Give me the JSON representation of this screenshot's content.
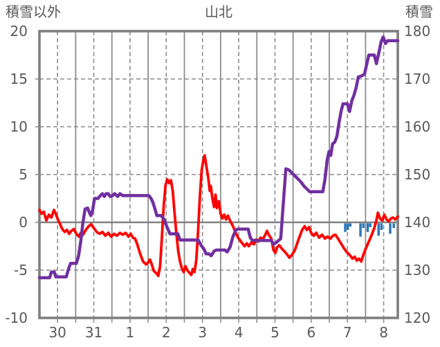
{
  "header": {
    "left_axis_title": "積雪以外",
    "title": "山北",
    "right_axis_title": "積雪"
  },
  "colors": {
    "red_series": "#ff0000",
    "purple_series": "#7030a0",
    "blue_bars": "#2e75b6",
    "grid": "#8c8c8c",
    "frame": "#7f7f7f",
    "zero_line": "#808080",
    "text": "#595959",
    "background": "#ffffff"
  },
  "chart_data": {
    "type": "line",
    "title": "山北",
    "left_axis": {
      "title": "積雪以外",
      "ticks": [
        20,
        15,
        10,
        5,
        0,
        -5,
        -10
      ],
      "range": [
        -10,
        20
      ]
    },
    "right_axis": {
      "title": "積雪",
      "ticks": [
        180,
        170,
        160,
        150,
        140,
        130,
        120
      ],
      "range": [
        120,
        180
      ]
    },
    "x_axis": {
      "categories": [
        "30",
        "31",
        "1",
        "2",
        "3",
        "4",
        "5",
        "6",
        "7",
        "8"
      ],
      "note": "t is in days from start of day 30; category k occupies t=[k,k+1]",
      "t_range": [
        0,
        9.89
      ],
      "solid_gridlines_t": [
        1,
        2,
        3,
        4,
        5,
        6,
        7,
        8,
        9
      ],
      "dashed_gridlines_t": [
        0.5,
        1.5,
        2.5,
        3.5,
        4.5,
        5.5,
        6.5,
        7.5,
        8.5,
        9.5
      ]
    },
    "grid": {
      "horizontal_dashed_at": [
        15,
        10,
        5,
        -5
      ],
      "zero_line_at": 0
    },
    "series": [
      {
        "id": "red-line",
        "type": "line",
        "axis": "left",
        "color": "#ff0000",
        "stroke_width": 3.8,
        "points": [
          [
            0.0,
            1.3
          ],
          [
            0.06,
            0.9
          ],
          [
            0.12,
            1.1
          ],
          [
            0.19,
            0.2
          ],
          [
            0.26,
            0.8
          ],
          [
            0.33,
            0.5
          ],
          [
            0.4,
            1.3
          ],
          [
            0.46,
            0.8
          ],
          [
            0.52,
            0.2
          ],
          [
            0.57,
            -0.2
          ],
          [
            0.63,
            -0.7
          ],
          [
            0.7,
            -1.0
          ],
          [
            0.76,
            -0.8
          ],
          [
            0.82,
            -1.2
          ],
          [
            0.88,
            -0.9
          ],
          [
            0.95,
            -0.7
          ],
          [
            1.02,
            -1.2
          ],
          [
            1.09,
            -1.5
          ],
          [
            1.14,
            -1.1
          ],
          [
            1.2,
            -1.3
          ],
          [
            1.28,
            -0.8
          ],
          [
            1.36,
            -0.4
          ],
          [
            1.43,
            -0.2
          ],
          [
            1.5,
            -0.6
          ],
          [
            1.58,
            -1.0
          ],
          [
            1.66,
            -1.2
          ],
          [
            1.74,
            -1.0
          ],
          [
            1.82,
            -1.4
          ],
          [
            1.9,
            -1.1
          ],
          [
            1.98,
            -1.5
          ],
          [
            2.06,
            -1.2
          ],
          [
            2.14,
            -1.4
          ],
          [
            2.22,
            -1.1
          ],
          [
            2.3,
            -1.3
          ],
          [
            2.38,
            -1.1
          ],
          [
            2.46,
            -1.5
          ],
          [
            2.52,
            -1.2
          ],
          [
            2.58,
            -1.6
          ],
          [
            2.64,
            -1.7
          ],
          [
            2.7,
            -2.3
          ],
          [
            2.78,
            -3.3
          ],
          [
            2.86,
            -4.1
          ],
          [
            2.94,
            -4.4
          ],
          [
            3.0,
            -4.2
          ],
          [
            3.05,
            -3.9
          ],
          [
            3.1,
            -4.4
          ],
          [
            3.16,
            -5.1
          ],
          [
            3.22,
            -5.3
          ],
          [
            3.28,
            -5.6
          ],
          [
            3.33,
            -4.6
          ],
          [
            3.38,
            -1.6
          ],
          [
            3.43,
            1.8
          ],
          [
            3.48,
            3.9
          ],
          [
            3.53,
            4.5
          ],
          [
            3.58,
            4.1
          ],
          [
            3.63,
            4.4
          ],
          [
            3.68,
            3.3
          ],
          [
            3.73,
            0.9
          ],
          [
            3.78,
            -1.2
          ],
          [
            3.83,
            -3.0
          ],
          [
            3.88,
            -4.1
          ],
          [
            3.93,
            -4.8
          ],
          [
            3.98,
            -5.2
          ],
          [
            4.03,
            -4.6
          ],
          [
            4.08,
            -5.0
          ],
          [
            4.14,
            -5.3
          ],
          [
            4.19,
            -5.5
          ],
          [
            4.23,
            -4.9
          ],
          [
            4.28,
            -5.2
          ],
          [
            4.33,
            -3.9
          ],
          [
            4.38,
            -0.8
          ],
          [
            4.43,
            2.8
          ],
          [
            4.48,
            5.5
          ],
          [
            4.52,
            6.4
          ],
          [
            4.56,
            7.0
          ],
          [
            4.61,
            5.8
          ],
          [
            4.66,
            4.6
          ],
          [
            4.7,
            3.3
          ],
          [
            4.73,
            3.8
          ],
          [
            4.77,
            2.6
          ],
          [
            4.82,
            1.6
          ],
          [
            4.86,
            2.9
          ],
          [
            4.9,
            1.5
          ],
          [
            4.95,
            2.2
          ],
          [
            5.0,
            0.9
          ],
          [
            5.05,
            0.4
          ],
          [
            5.1,
            0.8
          ],
          [
            5.15,
            0.3
          ],
          [
            5.2,
            0.7
          ],
          [
            5.27,
            0.1
          ],
          [
            5.34,
            -0.4
          ],
          [
            5.42,
            -1.1
          ],
          [
            5.48,
            -1.6
          ],
          [
            5.54,
            -1.9
          ],
          [
            5.6,
            -2.2
          ],
          [
            5.66,
            -2.5
          ],
          [
            5.72,
            -2.2
          ],
          [
            5.78,
            -2.5
          ],
          [
            5.85,
            -2.1
          ],
          [
            5.92,
            -2.3
          ],
          [
            5.98,
            -1.8
          ],
          [
            6.04,
            -2.0
          ],
          [
            6.1,
            -1.6
          ],
          [
            6.16,
            -1.8
          ],
          [
            6.22,
            -1.4
          ],
          [
            6.28,
            -0.9
          ],
          [
            6.33,
            -1.3
          ],
          [
            6.4,
            -1.7
          ],
          [
            6.46,
            -2.9
          ],
          [
            6.51,
            -3.2
          ],
          [
            6.56,
            -2.6
          ],
          [
            6.62,
            -2.4
          ],
          [
            6.7,
            -2.8
          ],
          [
            6.8,
            -3.2
          ],
          [
            6.9,
            -3.7
          ],
          [
            6.97,
            -3.4
          ],
          [
            7.05,
            -2.9
          ],
          [
            7.15,
            -1.8
          ],
          [
            7.25,
            -0.8
          ],
          [
            7.32,
            -0.4
          ],
          [
            7.38,
            -0.8
          ],
          [
            7.44,
            -0.5
          ],
          [
            7.5,
            -1.1
          ],
          [
            7.57,
            -1.4
          ],
          [
            7.64,
            -1.1
          ],
          [
            7.72,
            -1.6
          ],
          [
            7.8,
            -1.3
          ],
          [
            7.88,
            -1.7
          ],
          [
            7.95,
            -1.5
          ],
          [
            8.03,
            -1.7
          ],
          [
            8.1,
            -1.4
          ],
          [
            8.17,
            -1.3
          ],
          [
            8.24,
            -1.7
          ],
          [
            8.32,
            -2.2
          ],
          [
            8.4,
            -2.7
          ],
          [
            8.48,
            -3.1
          ],
          [
            8.56,
            -3.4
          ],
          [
            8.64,
            -3.8
          ],
          [
            8.7,
            -3.6
          ],
          [
            8.76,
            -4.0
          ],
          [
            8.82,
            -3.8
          ],
          [
            8.88,
            -4.1
          ],
          [
            8.94,
            -3.4
          ],
          [
            9.0,
            -2.8
          ],
          [
            9.08,
            -2.1
          ],
          [
            9.16,
            -1.4
          ],
          [
            9.24,
            -0.6
          ],
          [
            9.3,
            0.2
          ],
          [
            9.34,
            1.0
          ],
          [
            9.4,
            0.4
          ],
          [
            9.46,
            0.2
          ],
          [
            9.52,
            0.8
          ],
          [
            9.58,
            0.3
          ],
          [
            9.64,
            0.1
          ],
          [
            9.7,
            0.4
          ],
          [
            9.76,
            0.5
          ],
          [
            9.82,
            0.3
          ],
          [
            9.89,
            0.6
          ]
        ]
      },
      {
        "id": "purple-line",
        "type": "line",
        "axis": "right",
        "color": "#7030a0",
        "stroke_width": 4.5,
        "points": [
          [
            0.0,
            128.4
          ],
          [
            0.28,
            128.4
          ],
          [
            0.33,
            129.6
          ],
          [
            0.41,
            129.6
          ],
          [
            0.45,
            128.6
          ],
          [
            0.74,
            128.6
          ],
          [
            0.8,
            130.2
          ],
          [
            0.86,
            131.4
          ],
          [
            1.02,
            131.4
          ],
          [
            1.08,
            133
          ],
          [
            1.14,
            136
          ],
          [
            1.2,
            140
          ],
          [
            1.26,
            142.8
          ],
          [
            1.33,
            143
          ],
          [
            1.38,
            142
          ],
          [
            1.42,
            141.4
          ],
          [
            1.47,
            142.6
          ],
          [
            1.52,
            145
          ],
          [
            1.62,
            145
          ],
          [
            1.68,
            145.6
          ],
          [
            1.74,
            146
          ],
          [
            1.79,
            145.4
          ],
          [
            1.84,
            146
          ],
          [
            1.9,
            146
          ],
          [
            1.95,
            145.4
          ],
          [
            2.02,
            145.6
          ],
          [
            2.08,
            146
          ],
          [
            2.16,
            145.4
          ],
          [
            2.22,
            146
          ],
          [
            2.3,
            145.6
          ],
          [
            2.7,
            145.6
          ],
          [
            3.02,
            145.6
          ],
          [
            3.08,
            145
          ],
          [
            3.13,
            144.2
          ],
          [
            3.18,
            143
          ],
          [
            3.24,
            141.4
          ],
          [
            3.36,
            141.4
          ],
          [
            3.44,
            140.6
          ],
          [
            3.52,
            139
          ],
          [
            3.6,
            137.6
          ],
          [
            3.82,
            137.6
          ],
          [
            3.88,
            136.3
          ],
          [
            4.38,
            136.3
          ],
          [
            4.46,
            135.2
          ],
          [
            4.54,
            134.4
          ],
          [
            4.6,
            133.4
          ],
          [
            4.68,
            133.4
          ],
          [
            4.74,
            133
          ],
          [
            4.82,
            134
          ],
          [
            4.88,
            134.2
          ],
          [
            5.12,
            134.2
          ],
          [
            5.18,
            133.8
          ],
          [
            5.26,
            134.8
          ],
          [
            5.34,
            137
          ],
          [
            5.42,
            138.4
          ],
          [
            5.48,
            138.6
          ],
          [
            5.76,
            138.6
          ],
          [
            5.82,
            136.8
          ],
          [
            5.88,
            136.2
          ],
          [
            6.4,
            136.2
          ],
          [
            6.46,
            135.4
          ],
          [
            6.54,
            135.8
          ],
          [
            6.6,
            136.2
          ],
          [
            6.66,
            136.6
          ],
          [
            6.72,
            143
          ],
          [
            6.8,
            151.2
          ],
          [
            6.88,
            151
          ],
          [
            6.96,
            150.4
          ],
          [
            7.04,
            149.8
          ],
          [
            7.12,
            149.2
          ],
          [
            7.22,
            148.4
          ],
          [
            7.3,
            147.6
          ],
          [
            7.38,
            147
          ],
          [
            7.46,
            146.4
          ],
          [
            7.82,
            146.4
          ],
          [
            7.88,
            149
          ],
          [
            7.94,
            153
          ],
          [
            7.99,
            154.8
          ],
          [
            8.04,
            154
          ],
          [
            8.09,
            156.4
          ],
          [
            8.15,
            156.8
          ],
          [
            8.21,
            158
          ],
          [
            8.27,
            161
          ],
          [
            8.33,
            163.4
          ],
          [
            8.38,
            164.8
          ],
          [
            8.5,
            164.8
          ],
          [
            8.56,
            163.2
          ],
          [
            8.62,
            165.4
          ],
          [
            8.68,
            166.6
          ],
          [
            8.74,
            168.2
          ],
          [
            8.8,
            170.4
          ],
          [
            8.88,
            170.6
          ],
          [
            8.97,
            171
          ],
          [
            9.03,
            173
          ],
          [
            9.09,
            175
          ],
          [
            9.24,
            175
          ],
          [
            9.3,
            173.2
          ],
          [
            9.37,
            175.6
          ],
          [
            9.43,
            177.8
          ],
          [
            9.49,
            178.8
          ],
          [
            9.55,
            177.4
          ],
          [
            9.61,
            178
          ],
          [
            9.89,
            178
          ]
        ]
      },
      {
        "id": "blue-bars",
        "type": "bar",
        "axis": "left",
        "color": "#2e75b6",
        "bar_width": 3.5,
        "baseline": 0,
        "points": [
          [
            8.44,
            -1.0
          ],
          [
            8.51,
            -0.8
          ],
          [
            8.58,
            -0.45
          ],
          [
            8.86,
            -1.5
          ],
          [
            8.94,
            -0.6
          ],
          [
            9.06,
            -1.0
          ],
          [
            9.13,
            -0.5
          ],
          [
            9.36,
            -1.4
          ],
          [
            9.44,
            -0.8
          ],
          [
            9.68,
            -1.2
          ],
          [
            9.78,
            -0.6
          ]
        ]
      }
    ]
  }
}
